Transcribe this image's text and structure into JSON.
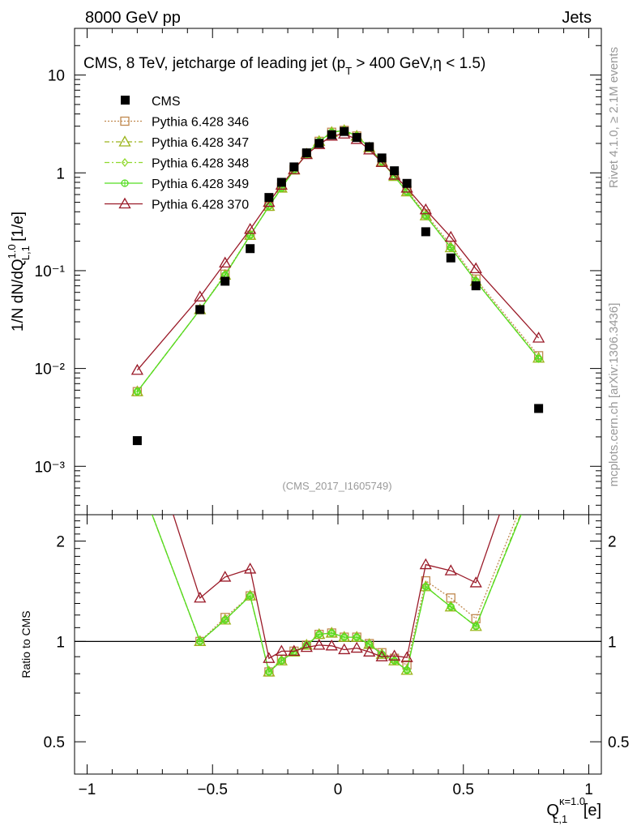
{
  "header": {
    "left": "8000 GeV pp",
    "right": "Jets"
  },
  "side": {
    "rivet": "Rivet 4.1.0, ≥ 2.1M events",
    "mcplots": "mcplots.cern.ch [arXiv:1306.3436]"
  },
  "chart_data": {
    "type": "scatter",
    "title": "CMS, 8 TeV, jetcharge of leading jet (p_T > 400 GeV, η < 1.5)",
    "title_parts": {
      "main": "CMS, 8 TeV, jetcharge of leading jet (p",
      "sub": "T",
      "rest": " > 400 GeV,η < 1.5)"
    },
    "watermark": "(CMS_2017_I1605749)",
    "ylabel": {
      "prefix": "1/N dN/dQ",
      "sup": "1.0",
      "sub": "L,1",
      "suffix": " [1/e]"
    },
    "ratio_ylabel": "Ratio to CMS",
    "xlabel": {
      "main": "Q",
      "sup": "κ=1.0",
      "sub": "L,1",
      "suffix": " [e]"
    },
    "x_ticks": [
      "−1",
      "−0.5",
      "0",
      "0.5",
      "1"
    ],
    "y_ticks": [
      "10⁻³",
      "10⁻²",
      "10⁻¹",
      "1",
      "10"
    ],
    "ratio_ticks": [
      "0.5",
      "1",
      "2"
    ],
    "xlim": [
      -1.05,
      1.05
    ],
    "ylim": [
      0.00032,
      30
    ],
    "ratio_ylim": [
      0.4,
      2.4
    ],
    "x": [
      -0.8,
      -0.55,
      -0.45,
      -0.35,
      -0.275,
      -0.225,
      -0.175,
      -0.125,
      -0.075,
      -0.025,
      0.025,
      0.075,
      0.125,
      0.175,
      0.225,
      0.275,
      0.35,
      0.45,
      0.55,
      0.8
    ],
    "reference": {
      "name": "CMS",
      "values": [
        0.00183,
        0.04,
        0.078,
        0.168,
        0.56,
        0.8,
        1.15,
        1.6,
        2.0,
        2.45,
        2.65,
        2.3,
        1.85,
        1.42,
        1.05,
        0.78,
        0.25,
        0.135,
        0.07,
        0.0039
      ]
    },
    "series": [
      {
        "name": "Pythia 6.428 346",
        "color": "#c0894f",
        "style": "dotted",
        "marker": "square",
        "values": [
          0.0058,
          0.04,
          0.092,
          0.23,
          0.455,
          0.71,
          1.08,
          1.56,
          2.1,
          2.6,
          2.72,
          2.38,
          1.82,
          1.31,
          0.93,
          0.66,
          0.38,
          0.182,
          0.082,
          0.0135
        ],
        "ratio": [
          3.15,
          1.0,
          1.18,
          1.37,
          0.81,
          0.885,
          0.935,
          0.975,
          1.05,
          1.06,
          1.03,
          1.03,
          0.985,
          0.925,
          0.89,
          0.85,
          1.52,
          1.35,
          1.17,
          3.45
        ]
      },
      {
        "name": "Pythia 6.428 347",
        "color": "#9cb51c",
        "style": "dashdot",
        "marker": "triangle",
        "values": [
          0.0058,
          0.04,
          0.09,
          0.23,
          0.455,
          0.7,
          1.07,
          1.56,
          2.1,
          2.6,
          2.72,
          2.38,
          1.81,
          1.3,
          0.92,
          0.64,
          0.365,
          0.172,
          0.078,
          0.0128
        ],
        "ratio": [
          3.15,
          1.0,
          1.16,
          1.37,
          0.81,
          0.875,
          0.93,
          0.975,
          1.05,
          1.06,
          1.03,
          1.03,
          0.98,
          0.915,
          0.875,
          0.82,
          1.46,
          1.27,
          1.11,
          3.28
        ]
      },
      {
        "name": "Pythia 6.428 348",
        "color": "#8fd82c",
        "style": "dashdot",
        "marker": "diamond",
        "values": [
          0.0058,
          0.04,
          0.09,
          0.23,
          0.455,
          0.7,
          1.07,
          1.56,
          2.1,
          2.6,
          2.72,
          2.38,
          1.81,
          1.3,
          0.92,
          0.64,
          0.365,
          0.172,
          0.078,
          0.0126
        ],
        "ratio": [
          3.15,
          1.0,
          1.16,
          1.37,
          0.81,
          0.875,
          0.93,
          0.975,
          1.05,
          1.06,
          1.03,
          1.03,
          0.98,
          0.915,
          0.875,
          0.82,
          1.46,
          1.27,
          1.11,
          3.23
        ]
      },
      {
        "name": "Pythia 6.428 349",
        "color": "#55dd22",
        "style": "solid",
        "marker": "circle",
        "values": [
          0.0058,
          0.04,
          0.09,
          0.23,
          0.455,
          0.7,
          1.07,
          1.56,
          2.1,
          2.6,
          2.72,
          2.38,
          1.81,
          1.3,
          0.92,
          0.64,
          0.365,
          0.172,
          0.078,
          0.0126
        ],
        "ratio": [
          3.15,
          1.0,
          1.16,
          1.37,
          0.81,
          0.875,
          0.93,
          0.975,
          1.05,
          1.06,
          1.03,
          1.03,
          0.98,
          0.915,
          0.875,
          0.82,
          1.46,
          1.27,
          1.11,
          3.23
        ]
      },
      {
        "name": "Pythia 6.428 370",
        "color": "#9a1a28",
        "style": "solid",
        "marker": "triangle",
        "values": [
          0.0096,
          0.054,
          0.12,
          0.265,
          0.5,
          0.75,
          1.08,
          1.54,
          1.95,
          2.38,
          2.5,
          2.2,
          1.72,
          1.28,
          0.95,
          0.7,
          0.42,
          0.22,
          0.105,
          0.0205
        ],
        "ratio": [
          5.2,
          1.35,
          1.56,
          1.65,
          0.89,
          0.935,
          0.935,
          0.96,
          0.975,
          0.97,
          0.945,
          0.955,
          0.93,
          0.9,
          0.905,
          0.895,
          1.7,
          1.63,
          1.5,
          5.25
        ]
      }
    ]
  }
}
